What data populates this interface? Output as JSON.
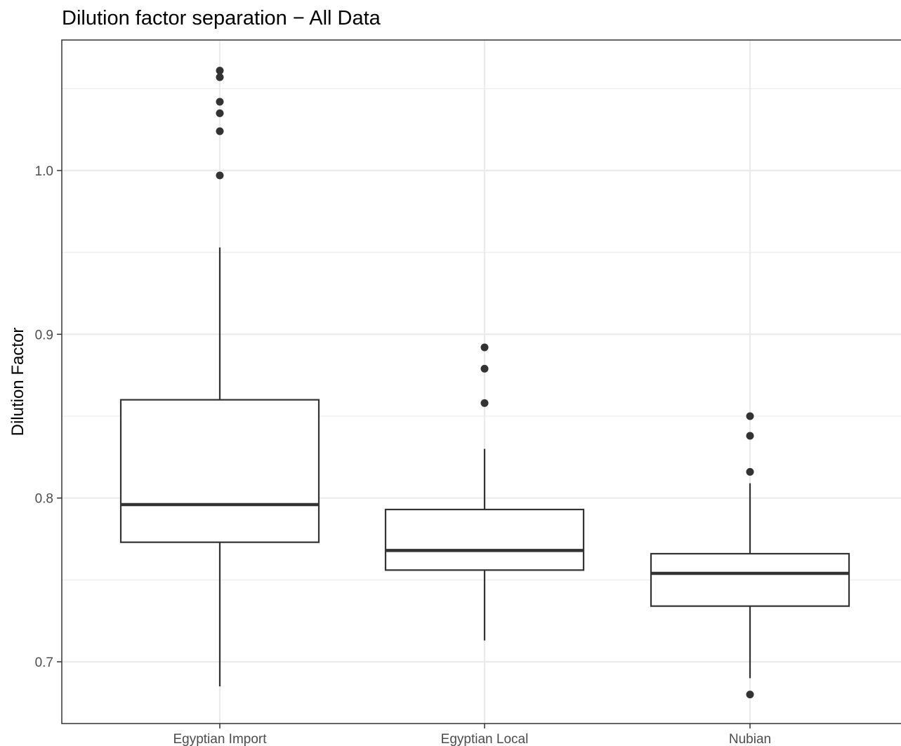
{
  "chart_data": {
    "type": "boxplot",
    "title": "Dilution factor separation − All Data",
    "xlabel": "",
    "ylabel": "Dilution Factor",
    "ylim": [
      0.662,
      1.08
    ],
    "y_ticks": [
      "0.7",
      "0.8",
      "0.9",
      "1.0"
    ],
    "y_tick_values": [
      0.7,
      0.8,
      0.9,
      1.0
    ],
    "y_minor_values": [
      0.75,
      0.85,
      0.95,
      1.05
    ],
    "grid": true,
    "legend": "none",
    "categories": [
      "Egyptian Import",
      "Egyptian Local",
      "Nubian"
    ],
    "boxes": [
      {
        "name": "Egyptian Import",
        "min": 0.685,
        "q1": 0.773,
        "median": 0.796,
        "q3": 0.86,
        "max": 0.953,
        "outliers": [
          0.997,
          1.024,
          1.035,
          1.042,
          1.057,
          1.061
        ]
      },
      {
        "name": "Egyptian Local",
        "min": 0.713,
        "q1": 0.756,
        "median": 0.768,
        "q3": 0.793,
        "max": 0.83,
        "outliers": [
          0.858,
          0.879,
          0.892
        ]
      },
      {
        "name": "Nubian",
        "min": 0.69,
        "q1": 0.734,
        "median": 0.754,
        "q3": 0.766,
        "max": 0.809,
        "outliers": [
          0.68,
          0.816,
          0.838,
          0.85
        ]
      }
    ],
    "colors": {
      "box_line": "#333333",
      "box_fill": "#ffffff",
      "grid": "#ebebeb",
      "tick_text": "#4d4d4d"
    }
  }
}
